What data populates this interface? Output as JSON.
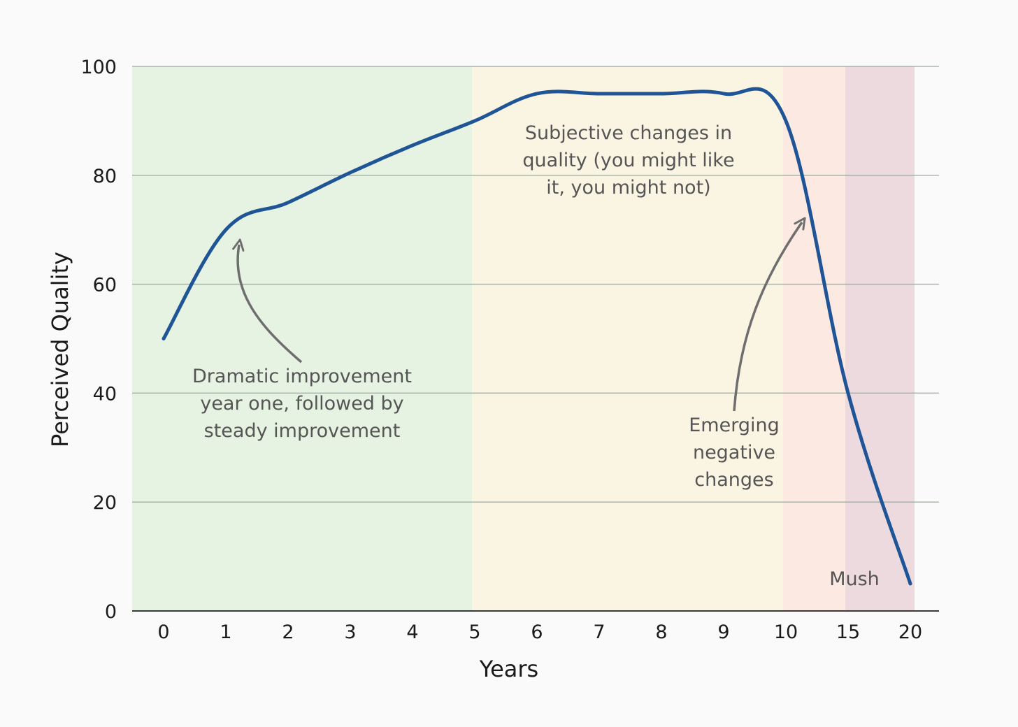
{
  "chart_data": {
    "type": "line",
    "title": "",
    "xlabel": "Years",
    "ylabel": "Perceived Quality",
    "x_categories": [
      "0",
      "1",
      "2",
      "3",
      "4",
      "5",
      "6",
      "7",
      "8",
      "9",
      "10",
      "15",
      "20"
    ],
    "ylim": [
      0,
      100
    ],
    "yticks": [
      "0",
      "20",
      "40",
      "60",
      "80",
      "100"
    ],
    "grid": true,
    "series": [
      {
        "values": [
          50,
          70,
          75,
          80.5,
          85.5,
          90,
          95,
          95,
          95,
          95,
          90,
          40,
          5
        ],
        "color": "#1f5596"
      }
    ],
    "regions": [
      {
        "from_index": 0,
        "to_index": 5,
        "color": "#e6f3e2"
      },
      {
        "from_index": 5,
        "to_index": 10,
        "color": "#faf4e2"
      },
      {
        "from_index": 10,
        "to_index": 11,
        "color": "#fbe9e2"
      },
      {
        "from_index": 11,
        "to_index": 12,
        "color": "#ecdadf"
      }
    ],
    "annotations": [
      {
        "lines": [
          "Dramatic improvement",
          "year one, followed by",
          "steady improvement"
        ]
      },
      {
        "lines": [
          "Subjective changes in",
          "quality (you might like",
          "it, you might not)"
        ]
      },
      {
        "lines": [
          "Emerging",
          "negative",
          "changes"
        ]
      },
      {
        "lines": [
          "Mush"
        ]
      }
    ],
    "annotation_color": "#555555",
    "arrow_color": "#6e6e6e"
  }
}
